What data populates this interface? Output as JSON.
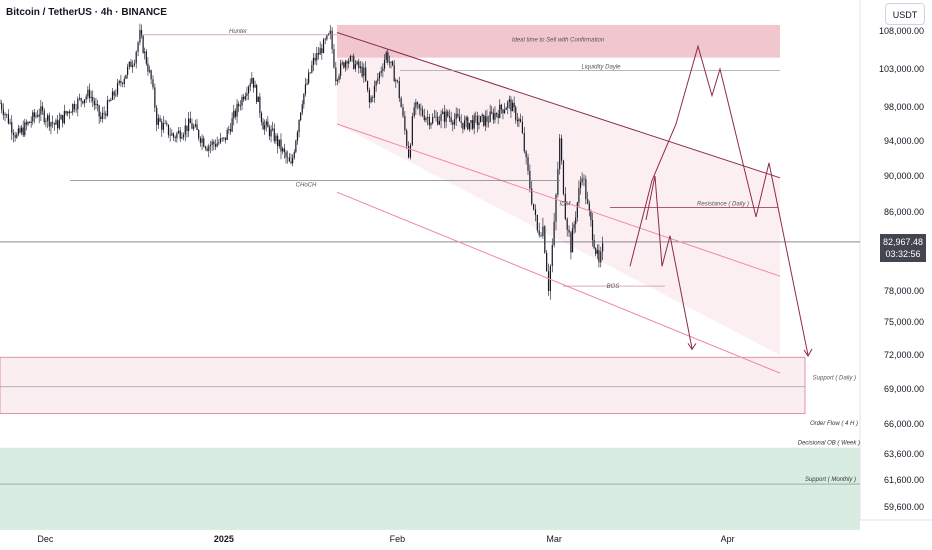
{
  "header": {
    "symbol_title": "Bitcoin / TetherUS · 4h · BINANCE",
    "currency_button": "USDT"
  },
  "last_price": {
    "value": "82,967.48",
    "countdown": "03:32:56"
  },
  "colors": {
    "candle": "#131722",
    "zone_pink": "#e8a0ad",
    "zone_green": "#b8dcc9",
    "projection": "#8e2a48",
    "channel": "#f08aa0"
  },
  "chart_data": {
    "type": "candlestick",
    "symbol": "BTCUSDT",
    "interval": "4h",
    "exchange": "BINANCE",
    "ylim": [
      57800,
      110000
    ],
    "yticks": [
      "108,000.00",
      "103,000.00",
      "98,000.00",
      "94,000.00",
      "90,000.00",
      "86,000.00",
      "78,000.00",
      "75,000.00",
      "72,000.00",
      "69,000.00",
      "66,000.00",
      "63,600.00",
      "61,600.00",
      "59,600.00"
    ],
    "xticks": [
      "Dec",
      "2025",
      "Feb",
      "Mar",
      "Apr"
    ],
    "close_path": [
      [
        "2024-11-22",
        98500
      ],
      [
        "2024-11-25",
        94500
      ],
      [
        "2024-11-27",
        96000
      ],
      [
        "2024-11-29",
        97500
      ],
      [
        "2024-12-02",
        95800
      ],
      [
        "2024-12-05",
        98200
      ],
      [
        "2024-12-08",
        99800
      ],
      [
        "2024-12-10",
        96500
      ],
      [
        "2024-12-13",
        100500
      ],
      [
        "2024-12-16",
        104500
      ],
      [
        "2024-12-17",
        107500
      ],
      [
        "2024-12-19",
        101500
      ],
      [
        "2024-12-20",
        96500
      ],
      [
        "2024-12-23",
        94500
      ],
      [
        "2024-12-26",
        96000
      ],
      [
        "2024-12-29",
        93500
      ],
      [
        "2025-01-01",
        94000
      ],
      [
        "2025-01-06",
        102000
      ],
      [
        "2025-01-08",
        96000
      ],
      [
        "2025-01-10",
        94500
      ],
      [
        "2025-01-13",
        91000
      ],
      [
        "2025-01-15",
        99000
      ],
      [
        "2025-01-17",
        104000
      ],
      [
        "2025-01-20",
        107500
      ],
      [
        "2025-01-21",
        102000
      ],
      [
        "2025-01-23",
        104500
      ],
      [
        "2025-01-26",
        102500
      ],
      [
        "2025-01-27",
        98500
      ],
      [
        "2025-01-30",
        105000
      ],
      [
        "2025-02-01",
        101000
      ],
      [
        "2025-02-02",
        96500
      ],
      [
        "2025-02-03",
        92500
      ],
      [
        "2025-02-04",
        98000
      ],
      [
        "2025-02-07",
        96500
      ],
      [
        "2025-02-10",
        97000
      ],
      [
        "2025-02-13",
        96000
      ],
      [
        "2025-02-17",
        96500
      ],
      [
        "2025-02-21",
        98500
      ],
      [
        "2025-02-23",
        96000
      ],
      [
        "2025-02-24",
        91500
      ],
      [
        "2025-02-25",
        87500
      ],
      [
        "2025-02-26",
        84000
      ],
      [
        "2025-02-27",
        84500
      ],
      [
        "2025-02-28",
        78500
      ],
      [
        "2025-03-01",
        84500
      ],
      [
        "2025-03-02",
        94000
      ],
      [
        "2025-03-03",
        86000
      ],
      [
        "2025-03-04",
        82500
      ],
      [
        "2025-03-06",
        90500
      ],
      [
        "2025-03-07",
        86500
      ],
      [
        "2025-03-09",
        80500
      ],
      [
        "2025-03-10",
        82967
      ]
    ],
    "last_price": 82967.48,
    "annotations": [
      {
        "type": "label",
        "text": "Hunter",
        "price": 107500
      },
      {
        "type": "zone",
        "text": "Ideal time to Sell with Confirmation",
        "from": 104500,
        "to": 108800
      },
      {
        "type": "level",
        "text": "Liquidity Dayle",
        "price": 102800
      },
      {
        "type": "level",
        "text": "CHoCH",
        "price": 89500
      },
      {
        "type": "level",
        "text": "IDM",
        "price": 86500
      },
      {
        "type": "level",
        "text": "Resistance ( Daily )",
        "price": 86500
      },
      {
        "type": "level",
        "text": "BOS",
        "price": 78500
      },
      {
        "type": "zone",
        "text": "Support ( Daily )",
        "from": 66900,
        "to": 71800
      },
      {
        "type": "level",
        "text": "Order Flow ( 4 H )",
        "price": 69200
      },
      {
        "type": "label",
        "text": "Decisional OB ( Week )",
        "price": 64300
      },
      {
        "type": "zone",
        "text": "Support ( Monthly )",
        "from": 57900,
        "to": 64100
      },
      {
        "type": "level",
        "text": "Support ( Monthly )",
        "price": 61300
      }
    ],
    "descending_channel": true,
    "projections": 2
  }
}
